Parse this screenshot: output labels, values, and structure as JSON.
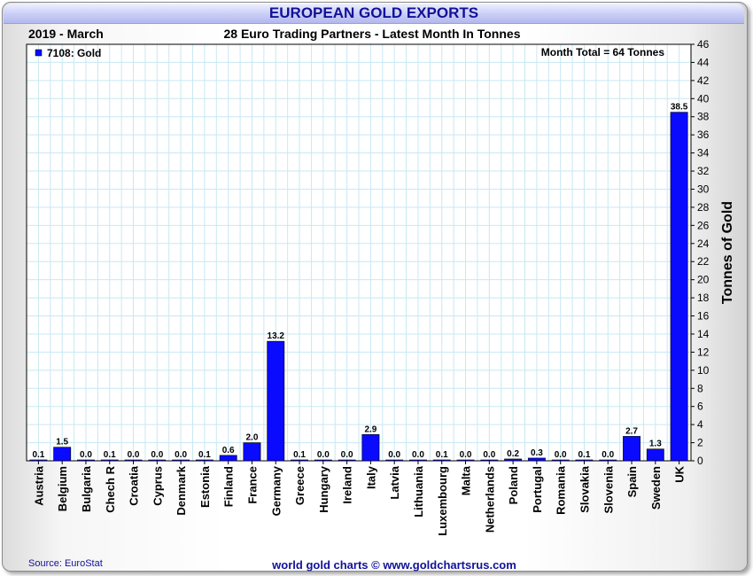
{
  "header": {
    "title": "EUROPEAN GOLD EXPORTS",
    "period": "2019 - March",
    "subtitle": "28 Euro Trading Partners - Latest Month In Tonnes"
  },
  "footer": {
    "source": "Source: EuroStat",
    "credit": "world gold charts © www.goldchartsrus.com"
  },
  "colors": {
    "bar": "#0a0aff",
    "grid": "#c8e8f4",
    "title": "#111199"
  },
  "chart_data": {
    "type": "bar",
    "title": "28 Euro Trading Partners - Latest Month In Tonnes",
    "ylabel": "Tonnes of Gold",
    "xlabel": "",
    "ylim": [
      0,
      46
    ],
    "y_ticks": [
      0,
      2,
      4,
      6,
      8,
      10,
      12,
      14,
      16,
      18,
      20,
      22,
      24,
      26,
      28,
      30,
      32,
      34,
      36,
      38,
      40,
      42,
      44,
      46
    ],
    "y_axis_side": "right",
    "grid": true,
    "legend": {
      "placement": "top-left",
      "entries": [
        "7108: Gold"
      ]
    },
    "annotation": "Month Total = 64 Tonnes",
    "categories": [
      "Austria",
      "Belgium",
      "Bulgaria",
      "Chech R",
      "Croatia",
      "Cyprus",
      "Denmark",
      "Estonia",
      "Finland",
      "France",
      "Germany",
      "Greece",
      "Hungary",
      "Ireland",
      "Italy",
      "Latvia",
      "Lithuania",
      "Luxembourg",
      "Malta",
      "Netherlands",
      "Poland",
      "Portugal",
      "Romania",
      "Slovakia",
      "Slovenia",
      "Spain",
      "Sweden",
      "UK"
    ],
    "series": [
      {
        "name": "7108: Gold",
        "values": [
          0.1,
          1.5,
          0.0,
          0.1,
          0.0,
          0.0,
          0.0,
          0.1,
          0.6,
          2.0,
          13.2,
          0.1,
          0.0,
          0.0,
          2.9,
          0.0,
          0.0,
          0.1,
          0.0,
          0.0,
          0.2,
          0.3,
          0.0,
          0.1,
          0.0,
          2.7,
          1.3,
          38.5
        ],
        "labels": [
          "0.1",
          "1.5",
          "0.0",
          "0.1",
          "0.0",
          "0.0",
          "0.0",
          "0.1",
          "0.6",
          "2.0",
          "13.2",
          "0.1",
          "0.0",
          "0.0",
          "2.9",
          "0.0",
          "0.0",
          "0.1",
          "0.0",
          "0.0",
          "0.2",
          "0.3",
          "0.0",
          "0.1",
          "0.0",
          "2.7",
          "1.3",
          "38.5"
        ]
      }
    ]
  }
}
